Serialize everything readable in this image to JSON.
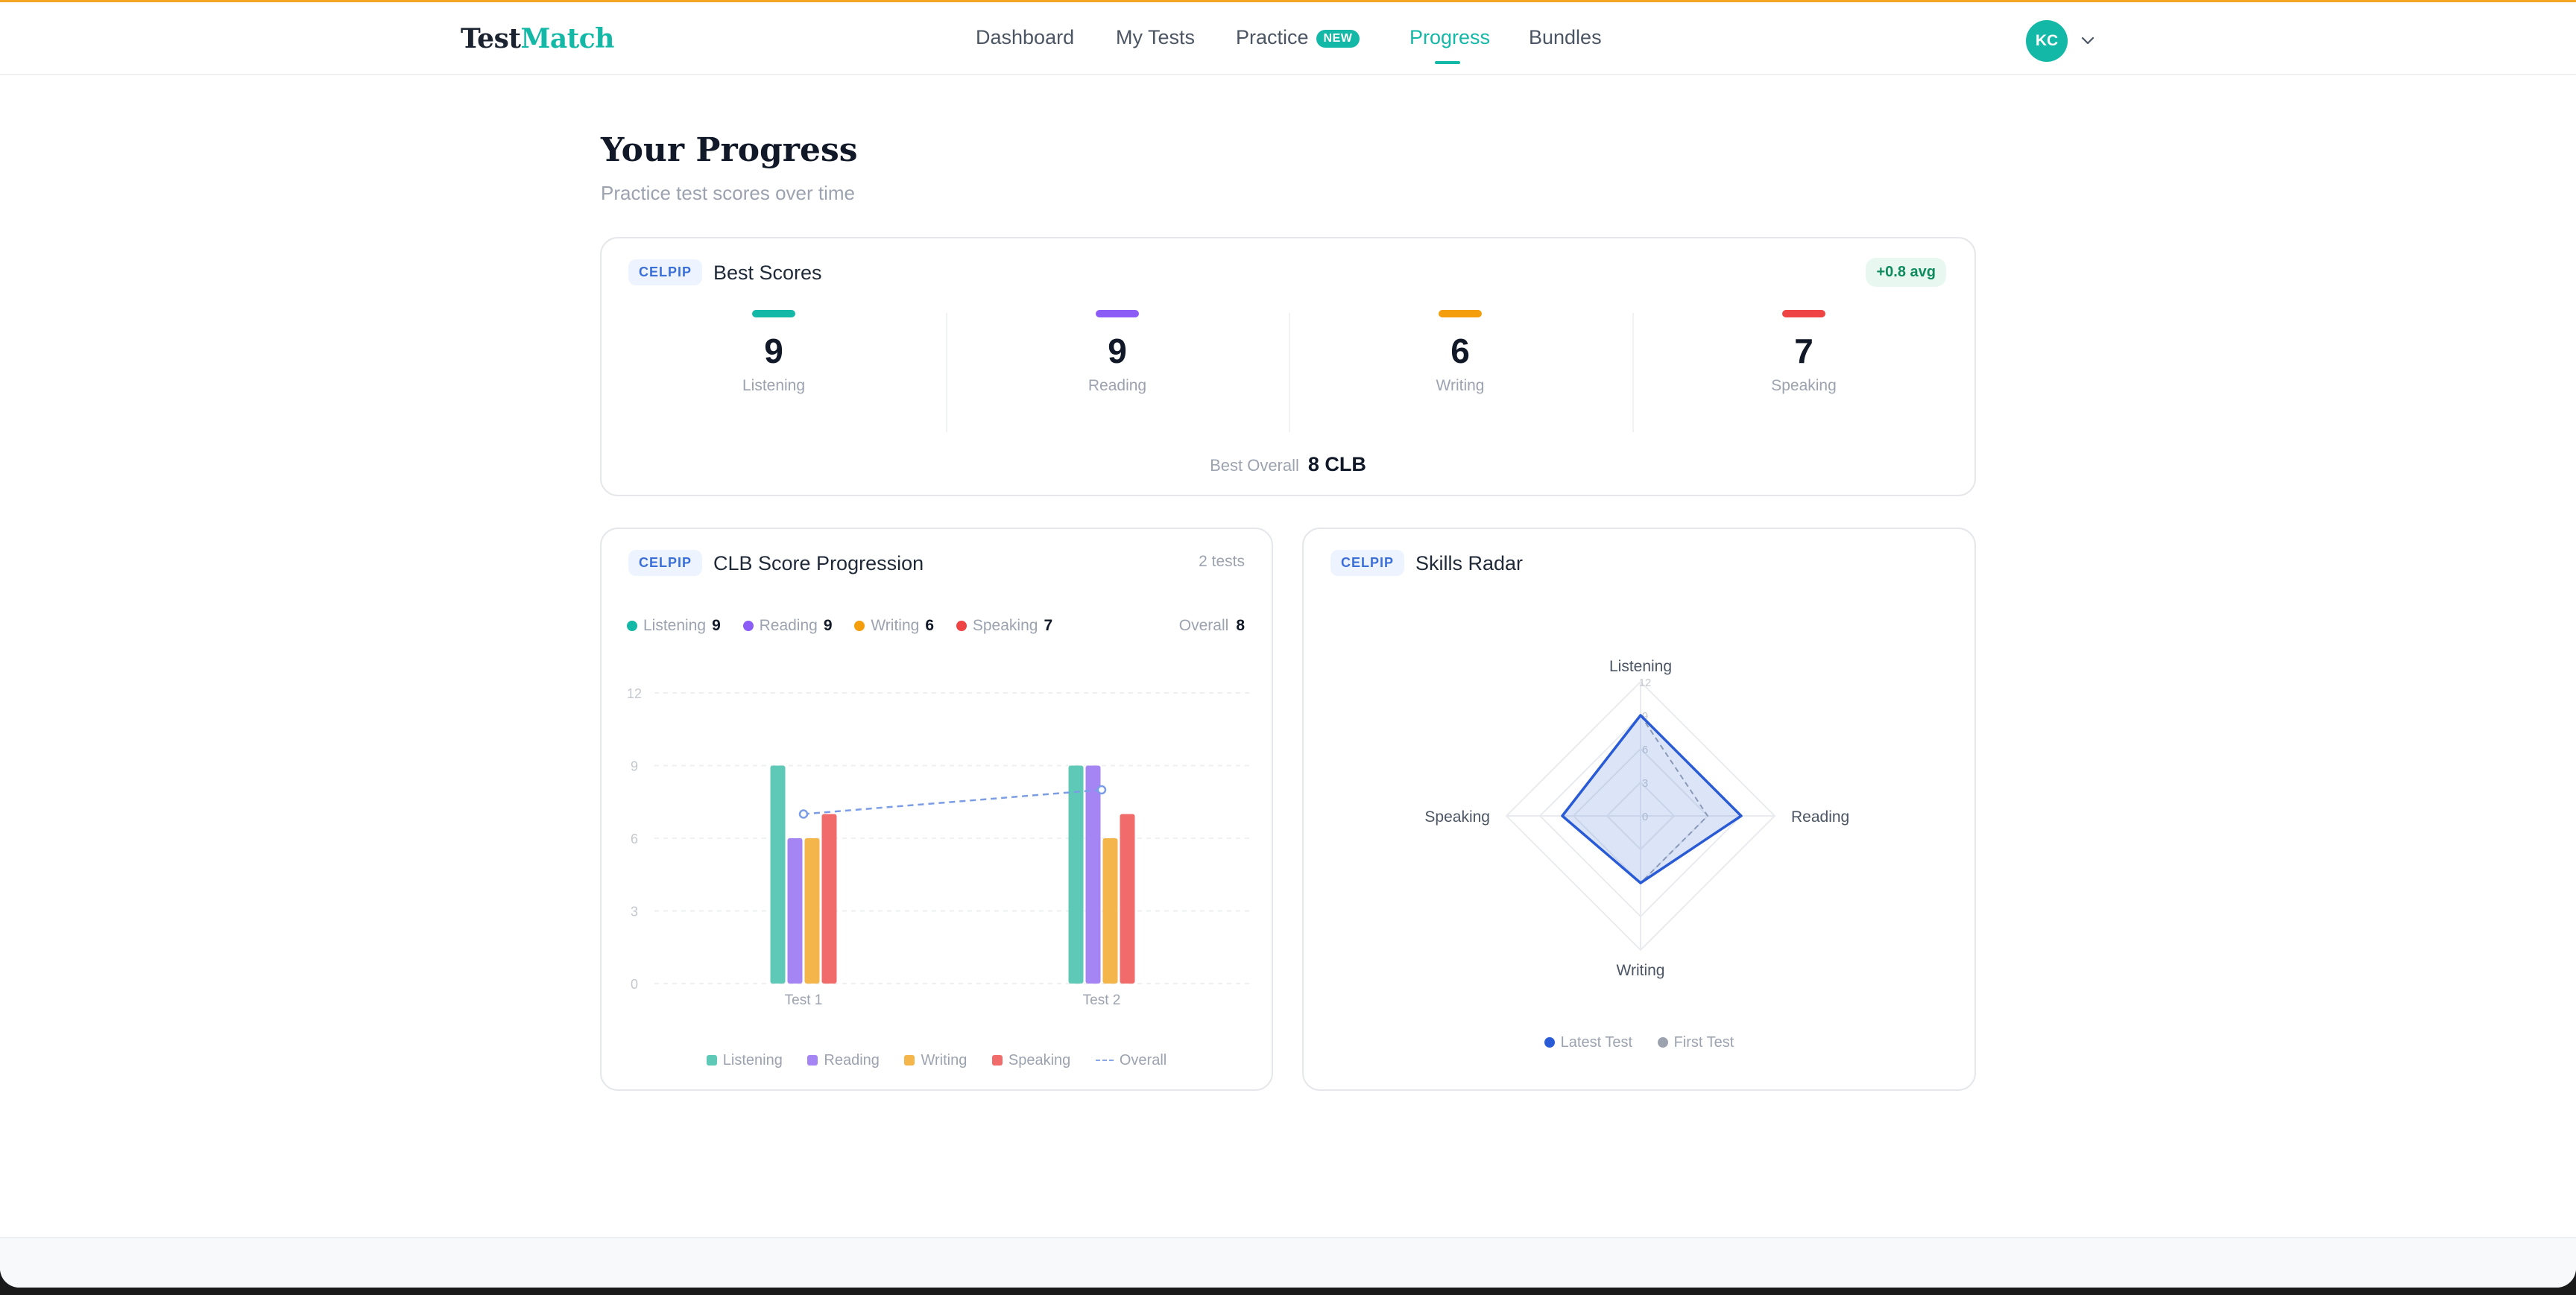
{
  "brand": {
    "part1": "Test",
    "part2": "Match"
  },
  "nav": {
    "items": [
      {
        "label": "Dashboard"
      },
      {
        "label": "My Tests"
      },
      {
        "label": "Practice",
        "badge": "NEW"
      },
      {
        "label": "Progress",
        "active": true
      },
      {
        "label": "Bundles"
      }
    ],
    "avatar_initials": "KC"
  },
  "page": {
    "title": "Your Progress",
    "subtitle": "Practice test scores over time"
  },
  "best_scores": {
    "tag": "CELPIP",
    "title": "Best Scores",
    "avg_badge": "+0.8 avg",
    "skills": [
      {
        "label": "Listening",
        "value": "9",
        "color": "#14b8a6"
      },
      {
        "label": "Reading",
        "value": "9",
        "color": "#8b5cf6"
      },
      {
        "label": "Writing",
        "value": "6",
        "color": "#f59e0b"
      },
      {
        "label": "Speaking",
        "value": "7",
        "color": "#ef4444"
      }
    ],
    "best_overall_label": "Best Overall",
    "best_overall_value": "8 CLB"
  },
  "progression": {
    "tag": "CELPIP",
    "title": "CLB Score Progression",
    "tests_count": "2 tests",
    "summary": [
      {
        "label": "Listening",
        "value": "9",
        "color": "#14b8a6"
      },
      {
        "label": "Reading",
        "value": "9",
        "color": "#8b5cf6"
      },
      {
        "label": "Writing",
        "value": "6",
        "color": "#f59e0b"
      },
      {
        "label": "Speaking",
        "value": "7",
        "color": "#ef4444"
      }
    ],
    "overall_label": "Overall",
    "overall_value": "8",
    "legend": {
      "listening": "Listening",
      "reading": "Reading",
      "writing": "Writing",
      "speaking": "Speaking",
      "overall": "Overall"
    }
  },
  "radar": {
    "tag": "CELPIP",
    "title": "Skills Radar",
    "legend": {
      "latest": "Latest Test",
      "first": "First Test"
    }
  },
  "chart_data": [
    {
      "type": "bar",
      "categories": [
        "Test 1",
        "Test 2"
      ],
      "series": [
        {
          "name": "Listening",
          "values": [
            9,
            9
          ],
          "color": "#5ec9b7"
        },
        {
          "name": "Reading",
          "values": [
            6,
            9
          ],
          "color": "#a585f3"
        },
        {
          "name": "Writing",
          "values": [
            6,
            6
          ],
          "color": "#f4b54a"
        },
        {
          "name": "Speaking",
          "values": [
            7,
            7
          ],
          "color": "#f26b6b"
        }
      ],
      "line_series": {
        "name": "Overall",
        "values": [
          7,
          8
        ],
        "color": "#7b9de6"
      },
      "yticks": [
        "0",
        "3",
        "6",
        "9",
        "12"
      ],
      "ylim": [
        0,
        12
      ],
      "grid": true,
      "legend": "bottom"
    },
    {
      "type": "radar",
      "axes": [
        "Listening",
        "Reading",
        "Writing",
        "Speaking"
      ],
      "rticks": [
        "0",
        "3",
        "6",
        "9",
        "12"
      ],
      "rlim": [
        0,
        12
      ],
      "series": [
        {
          "name": "Latest Test",
          "values": [
            9,
            9,
            6,
            7
          ],
          "color": "#2a5bd7"
        },
        {
          "name": "First Test",
          "values": [
            9,
            6,
            6,
            7
          ],
          "color": "#9ca3af"
        }
      ],
      "legend": "bottom"
    }
  ]
}
